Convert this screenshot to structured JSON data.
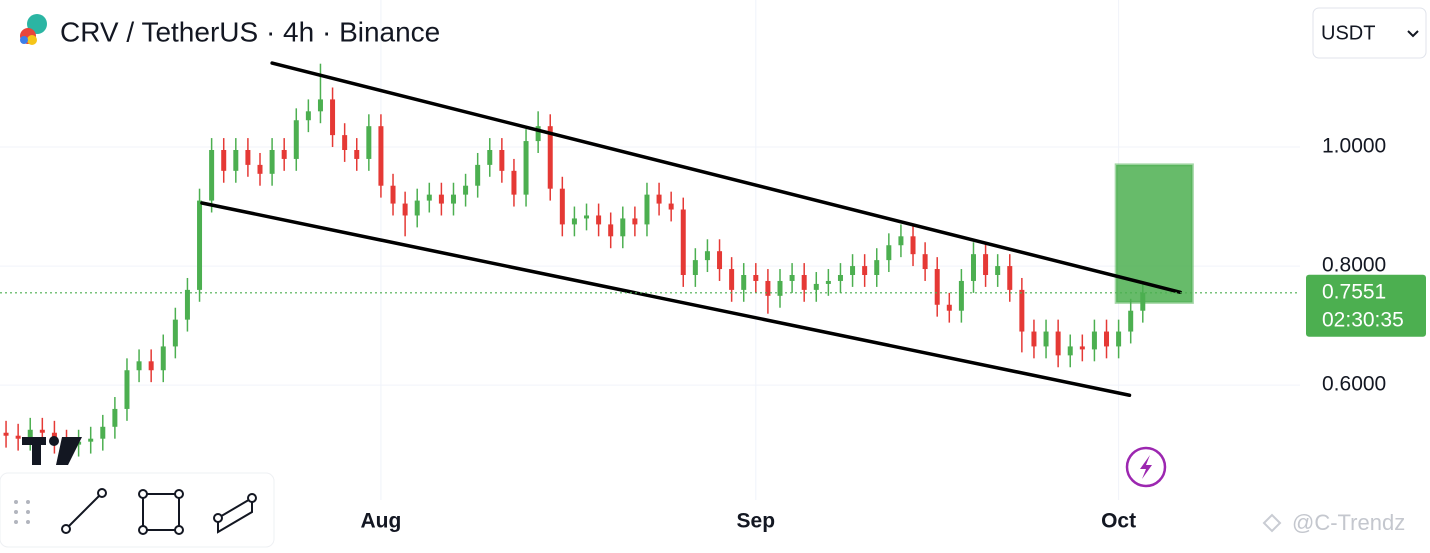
{
  "chart_data": {
    "type": "candlestick",
    "title": "CRV / TetherUS · 4h · Binance",
    "currency": "USDT",
    "countdown": "02:30:35",
    "watermark": "@C-Trendz",
    "up_color": "#4caf50",
    "down_color": "#e53935",
    "x": [
      1,
      2,
      3,
      4,
      5,
      6,
      7,
      8,
      9,
      10,
      11,
      12,
      13,
      14,
      15,
      16,
      17,
      18,
      19,
      20,
      21,
      22,
      23,
      24,
      25,
      26,
      27,
      28,
      29,
      30,
      31,
      32,
      33,
      34,
      35,
      36,
      37,
      38,
      39,
      40,
      41,
      42,
      43,
      44,
      45,
      46,
      47,
      48,
      49,
      50,
      51,
      52,
      53,
      54,
      55,
      56,
      57,
      58,
      59,
      60,
      61,
      62,
      63,
      64,
      65,
      66,
      67,
      68,
      69,
      70,
      71,
      72,
      73,
      74,
      75,
      76,
      77,
      78,
      79,
      80,
      81,
      82,
      83,
      84,
      85,
      86,
      87,
      88,
      89,
      90,
      91,
      92,
      93,
      94,
      95
    ],
    "open": [
      0.52,
      0.515,
      0.51,
      0.525,
      0.52,
      0.505,
      0.5,
      0.505,
      0.51,
      0.53,
      0.56,
      0.625,
      0.64,
      0.625,
      0.665,
      0.71,
      0.76,
      0.91,
      0.995,
      0.96,
      0.995,
      0.97,
      0.955,
      0.995,
      0.98,
      1.045,
      1.06,
      1.08,
      1.02,
      0.995,
      0.98,
      1.035,
      0.935,
      0.905,
      0.885,
      0.91,
      0.92,
      0.905,
      0.92,
      0.935,
      0.97,
      0.995,
      0.96,
      0.92,
      1.01,
      1.035,
      0.93,
      0.87,
      0.88,
      0.885,
      0.87,
      0.85,
      0.88,
      0.87,
      0.92,
      0.905,
      0.895,
      0.785,
      0.81,
      0.825,
      0.795,
      0.76,
      0.785,
      0.775,
      0.75,
      0.775,
      0.785,
      0.76,
      0.77,
      0.775,
      0.785,
      0.8,
      0.785,
      0.81,
      0.835,
      0.85,
      0.82,
      0.795,
      0.735,
      0.725,
      0.775,
      0.82,
      0.785,
      0.8,
      0.76,
      0.69,
      0.665,
      0.69,
      0.65,
      0.665,
      0.66,
      0.69,
      0.665,
      0.69,
      0.725
    ],
    "high": [
      0.54,
      0.535,
      0.545,
      0.545,
      0.54,
      0.525,
      0.525,
      0.53,
      0.55,
      0.58,
      0.645,
      0.66,
      0.66,
      0.685,
      0.73,
      0.78,
      0.93,
      1.015,
      1.015,
      1.015,
      1.015,
      0.99,
      1.015,
      1.015,
      1.065,
      1.08,
      1.14,
      1.1,
      1.04,
      1.015,
      1.055,
      1.055,
      0.955,
      0.925,
      0.93,
      0.94,
      0.94,
      0.94,
      0.955,
      0.99,
      1.015,
      1.015,
      0.98,
      1.03,
      1.06,
      1.055,
      0.95,
      0.9,
      0.905,
      0.905,
      0.89,
      0.9,
      0.9,
      0.94,
      0.94,
      0.925,
      0.915,
      0.83,
      0.845,
      0.845,
      0.815,
      0.805,
      0.805,
      0.795,
      0.795,
      0.805,
      0.805,
      0.79,
      0.795,
      0.805,
      0.82,
      0.82,
      0.83,
      0.855,
      0.87,
      0.87,
      0.84,
      0.815,
      0.755,
      0.795,
      0.84,
      0.84,
      0.82,
      0.82,
      0.78,
      0.71,
      0.71,
      0.71,
      0.685,
      0.685,
      0.71,
      0.71,
      0.71,
      0.745,
      0.775
    ],
    "low": [
      0.495,
      0.49,
      0.49,
      0.5,
      0.485,
      0.48,
      0.48,
      0.485,
      0.49,
      0.51,
      0.54,
      0.605,
      0.605,
      0.605,
      0.645,
      0.69,
      0.74,
      0.89,
      0.94,
      0.94,
      0.95,
      0.935,
      0.935,
      0.96,
      0.96,
      1.025,
      1.04,
      1.0,
      0.975,
      0.96,
      0.96,
      0.915,
      0.885,
      0.85,
      0.865,
      0.89,
      0.885,
      0.885,
      0.9,
      0.915,
      0.95,
      0.94,
      0.9,
      0.9,
      0.99,
      0.91,
      0.85,
      0.85,
      0.86,
      0.85,
      0.83,
      0.83,
      0.85,
      0.85,
      0.885,
      0.875,
      0.765,
      0.765,
      0.79,
      0.775,
      0.74,
      0.74,
      0.755,
      0.72,
      0.73,
      0.755,
      0.74,
      0.74,
      0.75,
      0.755,
      0.765,
      0.765,
      0.765,
      0.79,
      0.815,
      0.8,
      0.775,
      0.715,
      0.705,
      0.705,
      0.755,
      0.765,
      0.765,
      0.74,
      0.655,
      0.645,
      0.645,
      0.63,
      0.63,
      0.64,
      0.64,
      0.645,
      0.645,
      0.67,
      0.705
    ],
    "close": [
      0.515,
      0.51,
      0.525,
      0.52,
      0.505,
      0.5,
      0.505,
      0.51,
      0.53,
      0.56,
      0.625,
      0.64,
      0.625,
      0.665,
      0.71,
      0.76,
      0.91,
      0.995,
      0.96,
      0.995,
      0.97,
      0.955,
      0.995,
      0.98,
      1.045,
      1.06,
      1.08,
      1.02,
      0.995,
      0.98,
      1.035,
      0.935,
      0.905,
      0.885,
      0.91,
      0.92,
      0.905,
      0.92,
      0.935,
      0.97,
      0.995,
      0.96,
      0.92,
      1.01,
      1.035,
      0.93,
      0.87,
      0.88,
      0.885,
      0.87,
      0.85,
      0.88,
      0.87,
      0.92,
      0.905,
      0.895,
      0.785,
      0.81,
      0.825,
      0.795,
      0.76,
      0.785,
      0.775,
      0.75,
      0.775,
      0.785,
      0.76,
      0.77,
      0.775,
      0.785,
      0.8,
      0.785,
      0.81,
      0.835,
      0.85,
      0.82,
      0.795,
      0.735,
      0.725,
      0.775,
      0.82,
      0.785,
      0.8,
      0.76,
      0.69,
      0.665,
      0.69,
      0.65,
      0.665,
      0.66,
      0.69,
      0.665,
      0.69,
      0.725,
      0.7551
    ],
    "xlim": [
      0.5,
      108
    ],
    "ylim": [
      0.407,
      1.247
    ],
    "xticks": [
      {
        "value": 32,
        "label": "Aug"
      },
      {
        "value": 63,
        "label": "Sep"
      },
      {
        "value": 93,
        "label": "Oct"
      }
    ],
    "yticks": [
      {
        "value": 0.6,
        "label": "0.6000"
      },
      {
        "value": 0.8,
        "label": "0.8000"
      },
      {
        "value": 1.0,
        "label": "1.0000"
      }
    ],
    "grid": true,
    "trend_lines": [
      {
        "x": [
          23.0,
          98.1
        ],
        "y": [
          1.141,
          0.756
        ],
        "color": "#000000"
      },
      {
        "x": [
          17.2,
          93.9
        ],
        "y": [
          0.906,
          0.583
        ],
        "color": "#000000"
      }
    ],
    "target_zone": {
      "x": [
        92.8,
        99.1
      ],
      "y": [
        0.739,
        0.97
      ],
      "color": "#4caf50"
    }
  }
}
